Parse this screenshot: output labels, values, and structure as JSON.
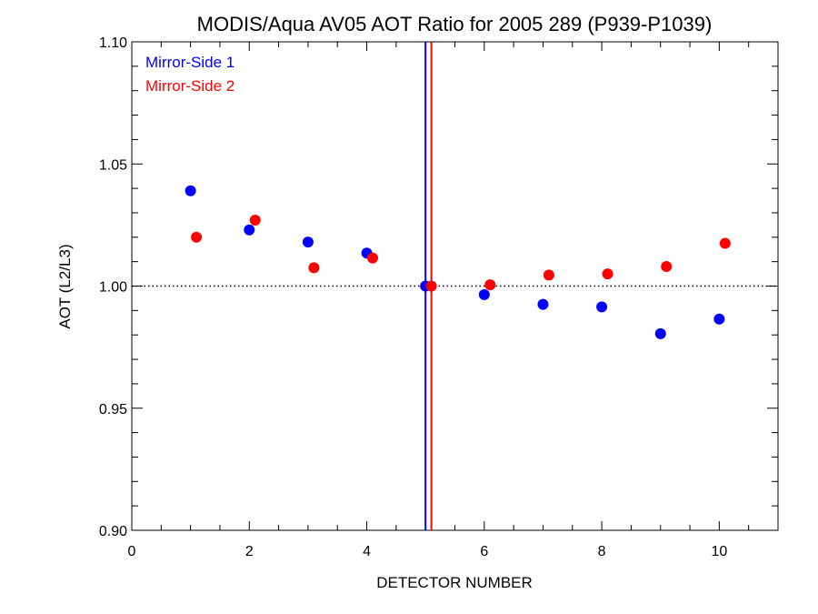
{
  "chart_data": {
    "type": "scatter",
    "title": "MODIS/Aqua AV05 AOT Ratio for 2005 289 (P939-P1039)",
    "xlabel": "DETECTOR NUMBER",
    "ylabel": "AOT (L2/L3)",
    "xlim": [
      0,
      11
    ],
    "ylim": [
      0.9,
      1.1
    ],
    "x_ticks": [
      0,
      2,
      4,
      6,
      8,
      10
    ],
    "y_ticks": [
      0.9,
      0.95,
      1.0,
      1.05,
      1.1
    ],
    "x_tick_labels": [
      "0",
      "2",
      "4",
      "6",
      "8",
      "10"
    ],
    "y_tick_labels": [
      "0.90",
      "0.95",
      "1.00",
      "1.05",
      "1.10"
    ],
    "x_minor_step": 0.5,
    "y_minor_step": 0.01,
    "reference_line": {
      "y": 1.0,
      "style": "dotted",
      "color": "#000000"
    },
    "vertical_lines": [
      {
        "x": 5.0,
        "color": "#0000ff"
      },
      {
        "x": 5.1,
        "color": "#ff0000"
      }
    ],
    "legend": {
      "placement": "top-left"
    },
    "series": [
      {
        "name": "Mirror-Side 1",
        "color": "#0000ff",
        "x": [
          1,
          2,
          3,
          4,
          5,
          6,
          7,
          8,
          9,
          10
        ],
        "y": [
          1.039,
          1.023,
          1.018,
          1.0135,
          1.0,
          0.9965,
          0.9925,
          0.9915,
          0.9805,
          0.9865
        ]
      },
      {
        "name": "Mirror-Side 2",
        "color": "#ff0000",
        "x": [
          1.1,
          2.1,
          3.1,
          4.1,
          5.1,
          6.1,
          7.1,
          8.1,
          9.1,
          10.1
        ],
        "y": [
          1.02,
          1.027,
          1.0075,
          1.0115,
          1.0,
          1.0005,
          1.0045,
          1.005,
          1.008,
          1.0175
        ]
      }
    ]
  }
}
